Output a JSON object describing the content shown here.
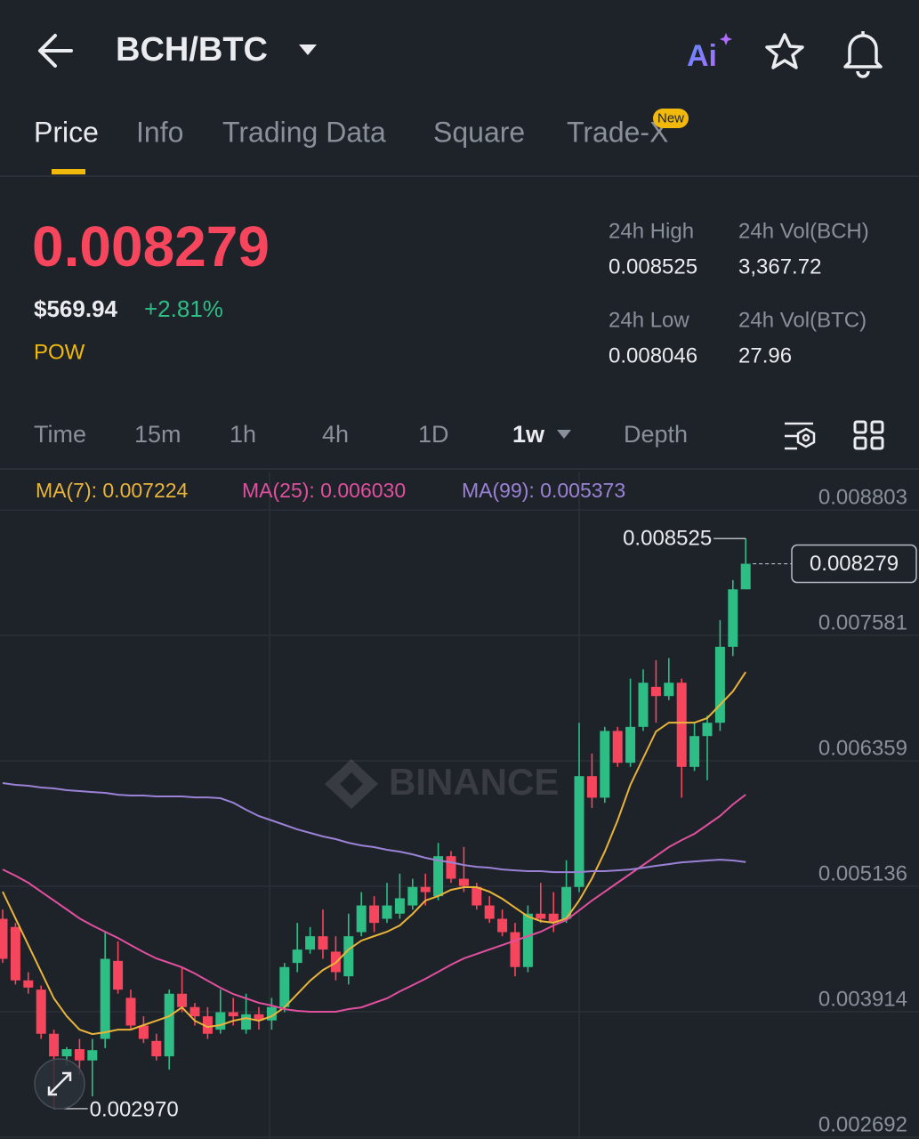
{
  "header": {
    "title": "BCH/BTC",
    "ai": "Ai"
  },
  "tabs": [
    "Price",
    "Info",
    "Trading Data",
    "Square",
    "Trade-X"
  ],
  "tab_badge": "New",
  "ticker": {
    "price": "0.008279",
    "usd": "$569.94",
    "change": "+2.81%",
    "tag": "POW",
    "stats": [
      {
        "label": "24h High",
        "value": "0.008525"
      },
      {
        "label": "24h Vol(BCH)",
        "value": "3,367.72"
      },
      {
        "label": "24h Low",
        "value": "0.008046"
      },
      {
        "label": "24h Vol(BTC)",
        "value": "27.96"
      }
    ]
  },
  "intervals": [
    "Time",
    "15m",
    "1h",
    "4h",
    "1D",
    "1w",
    "Depth"
  ],
  "watermark": "BINANCE",
  "chart_data": {
    "type": "candlestick",
    "up_color": "#2ebd85",
    "down_color": "#f6465d",
    "grid": true,
    "ylim": [
      0.002692,
      0.009246
    ],
    "yticks": [
      0.008803,
      0.007581,
      0.006359,
      0.005136,
      0.003914,
      0.002692
    ],
    "low_label": "0.002970",
    "open": [
      0.00482,
      0.00474,
      0.00422,
      0.00413,
      0.0037,
      0.00348,
      0.00355,
      0.00344,
      0.00365,
      0.00441,
      0.00405,
      0.00378,
      0.00363,
      0.00348,
      0.00409,
      0.00396,
      0.00387,
      0.00374,
      0.00391,
      0.00374,
      0.00389,
      0.00383,
      0.00396,
      0.00439,
      0.00452,
      0.00465,
      0.0045,
      0.00426,
      0.00469,
      0.00495,
      0.00482,
      0.00487,
      0.00495,
      0.00513,
      0.00504,
      0.00543,
      0.00521,
      0.00513,
      0.00495,
      0.00482,
      0.00469,
      0.00435,
      0.00487,
      0.00487,
      0.00482,
      0.00513,
      0.00621,
      0.006,
      0.00665,
      0.00634,
      0.00669,
      0.00708,
      0.00699,
      0.00712,
      0.0063,
      0.0066,
      0.00673,
      0.00747,
      0.00803
    ],
    "high": [
      0.00491,
      0.00478,
      0.0043,
      0.00417,
      0.00374,
      0.00357,
      0.00365,
      0.00365,
      0.0047,
      0.0046,
      0.00413,
      0.00387,
      0.0037,
      0.00413,
      0.00435,
      0.004,
      0.00396,
      0.00413,
      0.00405,
      0.00409,
      0.00396,
      0.00405,
      0.00439,
      0.00478,
      0.00474,
      0.00491,
      0.00465,
      0.00487,
      0.00508,
      0.00504,
      0.00517,
      0.00526,
      0.00521,
      0.00526,
      0.00556,
      0.00548,
      0.00552,
      0.00517,
      0.00504,
      0.00491,
      0.00478,
      0.00495,
      0.00517,
      0.00508,
      0.00539,
      0.00673,
      0.00643,
      0.00669,
      0.00669,
      0.00716,
      0.00725,
      0.00734,
      0.00736,
      0.00716,
      0.00673,
      0.0068,
      0.00773,
      0.00812,
      0.008525
    ],
    "low": [
      0.00439,
      0.00418,
      0.00409,
      0.00365,
      0.00297,
      0.00339,
      0.0033,
      0.00309,
      0.00356,
      0.00409,
      0.00374,
      0.00361,
      0.00344,
      0.00335,
      0.00391,
      0.00378,
      0.00365,
      0.0037,
      0.00378,
      0.0037,
      0.00374,
      0.00374,
      0.00391,
      0.0043,
      0.00448,
      0.00443,
      0.00422,
      0.00418,
      0.00465,
      0.00469,
      0.00478,
      0.00482,
      0.00491,
      0.00495,
      0.005,
      0.00517,
      0.00508,
      0.00491,
      0.00478,
      0.00465,
      0.00426,
      0.0043,
      0.00478,
      0.00469,
      0.00478,
      0.00508,
      0.0059,
      0.00595,
      0.0063,
      0.0063,
      0.00665,
      0.00673,
      0.00695,
      0.006,
      0.00626,
      0.00617,
      0.00665,
      0.00738,
      0.00803
    ],
    "close": [
      0.00443,
      0.00422,
      0.00415,
      0.0037,
      0.00348,
      0.00355,
      0.00344,
      0.00354,
      0.00443,
      0.00413,
      0.00378,
      0.00365,
      0.00348,
      0.00409,
      0.00396,
      0.00387,
      0.0037,
      0.00391,
      0.00387,
      0.00389,
      0.00383,
      0.00396,
      0.00435,
      0.00452,
      0.00465,
      0.00452,
      0.0043,
      0.00465,
      0.00495,
      0.00478,
      0.00495,
      0.00502,
      0.00513,
      0.00508,
      0.00543,
      0.00521,
      0.00514,
      0.00495,
      0.00482,
      0.00469,
      0.00435,
      0.00487,
      0.00482,
      0.00478,
      0.00513,
      0.00621,
      0.006,
      0.00665,
      0.00634,
      0.00669,
      0.00712,
      0.00699,
      0.00712,
      0.0063,
      0.0066,
      0.00673,
      0.00747,
      0.00803,
      0.008279
    ],
    "series": [
      {
        "name": "MA(7): 0.007224",
        "color": "#e9b43a",
        "values": [
          0.005084,
          0.004824,
          0.004564,
          0.004304,
          0.004044,
          0.003871,
          0.00374,
          0.003697,
          0.003714,
          0.00374,
          0.00374,
          0.003784,
          0.003827,
          0.003871,
          0.003957,
          0.003827,
          0.003766,
          0.003784,
          0.003827,
          0.003853,
          0.003827,
          0.003871,
          0.003957,
          0.004087,
          0.004217,
          0.004321,
          0.004391,
          0.004521,
          0.004607,
          0.004651,
          0.004694,
          0.004755,
          0.004868,
          0.004998,
          0.005041,
          0.005102,
          0.005128,
          0.005128,
          0.005084,
          0.005015,
          0.004928,
          0.004842,
          0.004798,
          0.004781,
          0.004824,
          0.004998,
          0.005214,
          0.005474,
          0.005778,
          0.006125,
          0.006385,
          0.006645,
          0.006731,
          0.006731,
          0.006731,
          0.006775,
          0.006905,
          0.007035,
          0.007224
        ]
      },
      {
        "name": "MA(25): 0.006030",
        "color": "#e0509e",
        "values": [
          0.005301,
          0.00524,
          0.005171,
          0.005084,
          0.004998,
          0.004911,
          0.004824,
          0.004755,
          0.004694,
          0.004633,
          0.004564,
          0.004495,
          0.004434,
          0.004391,
          0.004347,
          0.004287,
          0.004217,
          0.004148,
          0.004087,
          0.004044,
          0.004001,
          0.003975,
          0.00394,
          0.003923,
          0.003914,
          0.003914,
          0.003914,
          0.00394,
          0.003957,
          0.004001,
          0.004044,
          0.004113,
          0.004174,
          0.004235,
          0.004304,
          0.004373,
          0.004434,
          0.004477,
          0.004521,
          0.004564,
          0.004607,
          0.004651,
          0.004694,
          0.004755,
          0.004807,
          0.004902,
          0.004998,
          0.005084,
          0.005171,
          0.005258,
          0.005345,
          0.005431,
          0.005518,
          0.005587,
          0.005648,
          0.005735,
          0.005822,
          0.005934,
          0.00603
        ]
      },
      {
        "name": "MA(99): 0.005373",
        "color": "#9b82d6",
        "values": [
          0.006142,
          0.006125,
          0.006116,
          0.006099,
          0.00609,
          0.006073,
          0.006064,
          0.006055,
          0.006047,
          0.006029,
          0.006021,
          0.006021,
          0.006012,
          0.006012,
          0.006012,
          0.006003,
          0.006003,
          0.005995,
          0.005951,
          0.005882,
          0.005821,
          0.005778,
          0.005735,
          0.005691,
          0.005657,
          0.005622,
          0.005596,
          0.005561,
          0.005535,
          0.005518,
          0.005492,
          0.005474,
          0.005448,
          0.005414,
          0.005388,
          0.00537,
          0.005344,
          0.005327,
          0.005318,
          0.005301,
          0.005292,
          0.005284,
          0.005284,
          0.005275,
          0.005275,
          0.005275,
          0.005284,
          0.005284,
          0.005292,
          0.005301,
          0.005318,
          0.005336,
          0.005353,
          0.00537,
          0.005379,
          0.005388,
          0.005396,
          0.005388,
          0.005373
        ]
      }
    ]
  }
}
